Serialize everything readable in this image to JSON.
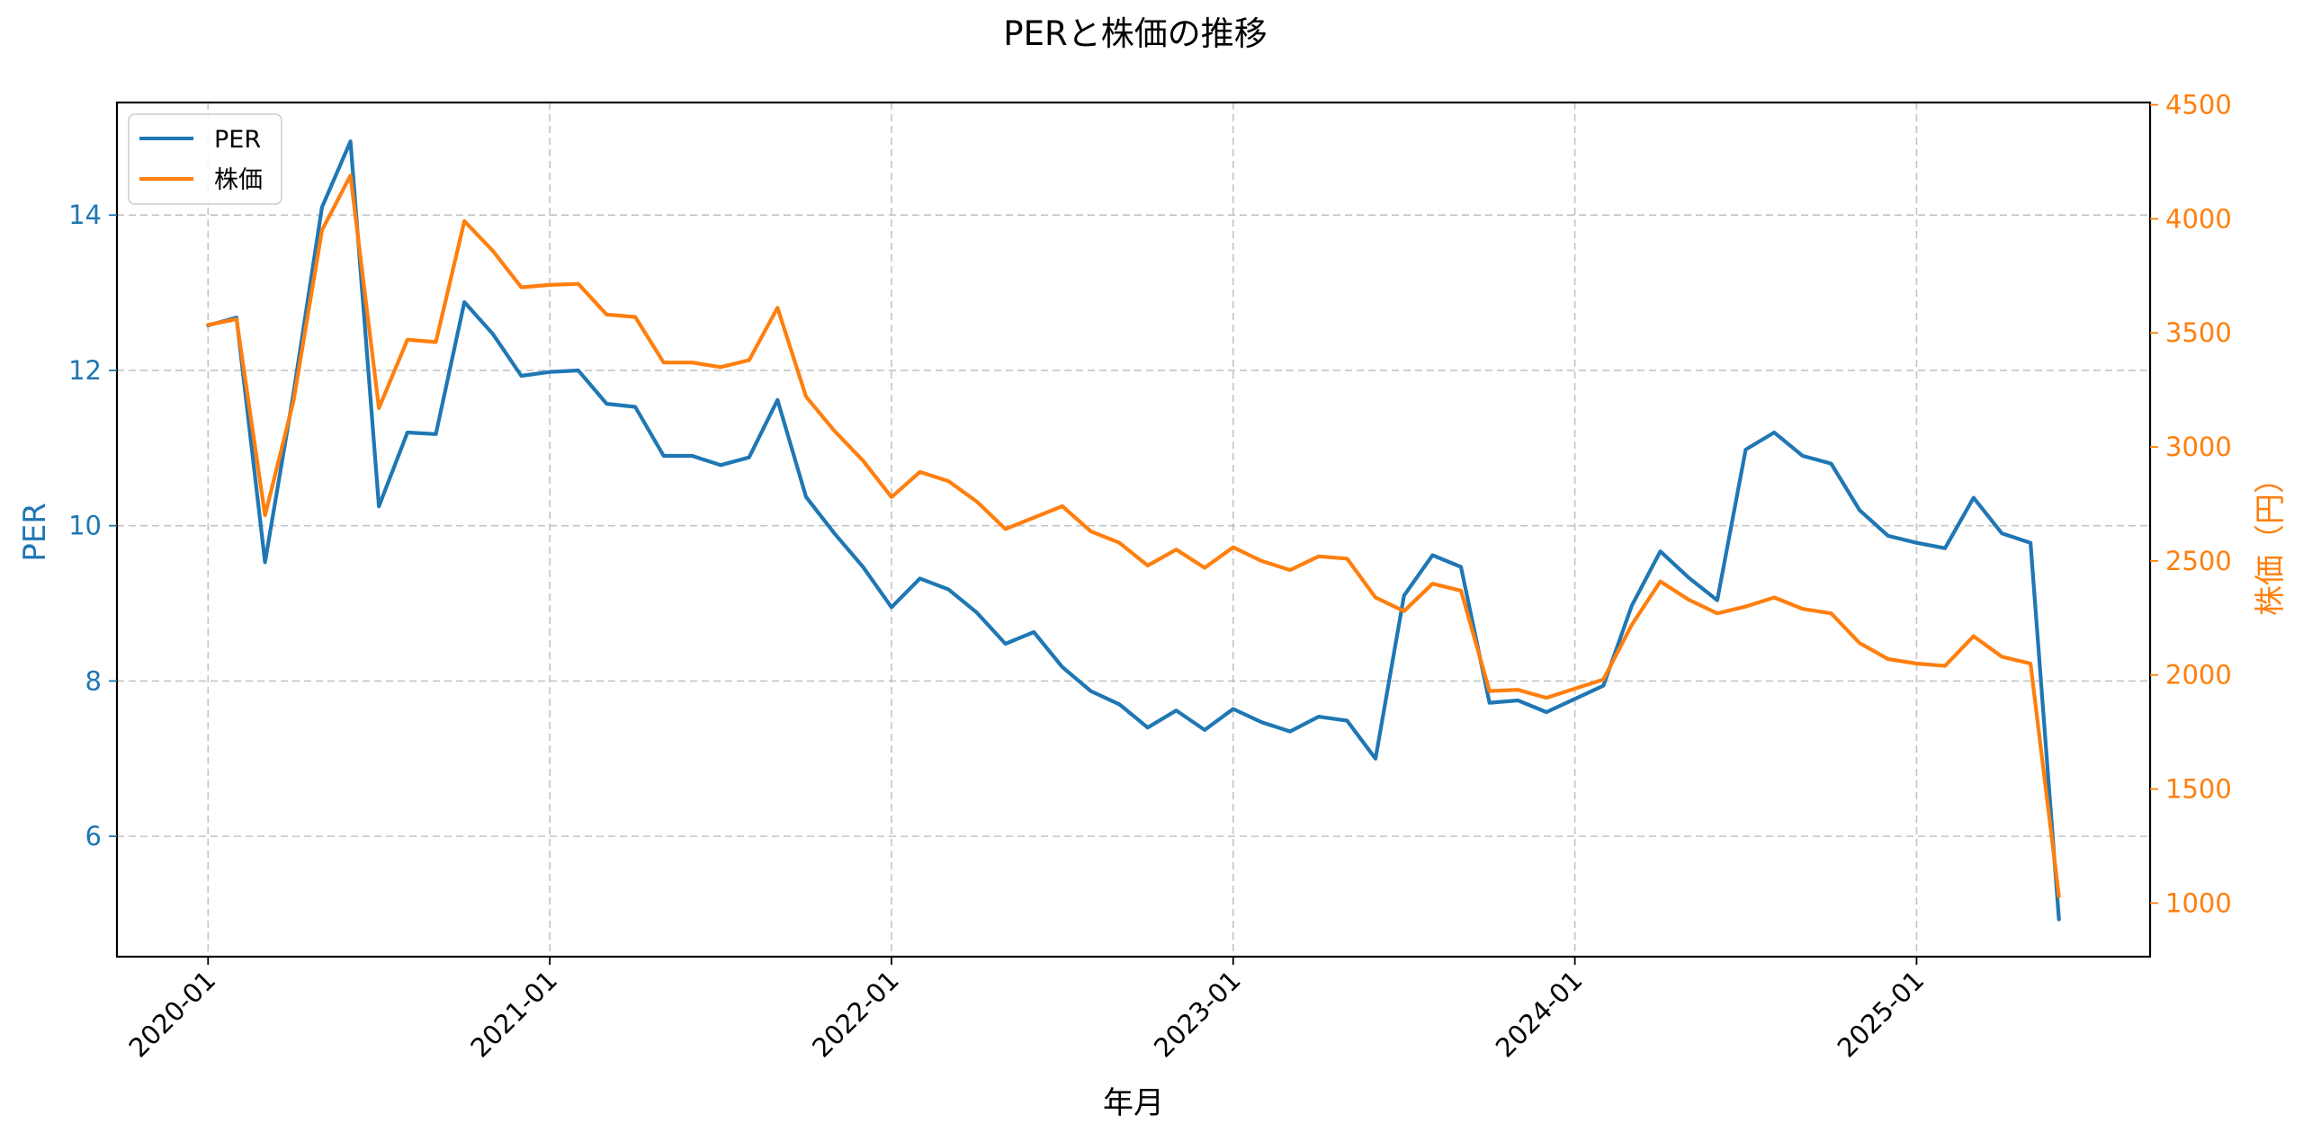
{
  "chart_data": {
    "type": "line",
    "title": "PERと株価の推移",
    "xlabel": "年月",
    "ylabel_left": "PER",
    "ylabel_right": "株価（円）",
    "x_tick_labels": [
      "2020-01",
      "2021-01",
      "2022-01",
      "2023-01",
      "2024-01",
      "2025-01"
    ],
    "x_range_months": [
      -3.2,
      68.2
    ],
    "ylim_left": [
      4.45,
      15.45
    ],
    "ylim_right": [
      765,
      4510
    ],
    "yticks_left": [
      "6",
      "8",
      "10",
      "12",
      "14"
    ],
    "yticks_right": [
      "1000",
      "1500",
      "2000",
      "2500",
      "3000",
      "3500",
      "4000",
      "4500"
    ],
    "grid": true,
    "legend_position": "upper-left",
    "colors": {
      "per": "#1f77b4",
      "price": "#ff7f0e"
    },
    "series": [
      {
        "name": "PER",
        "axis": "left",
        "values": [
          12.58,
          12.68,
          9.53,
          11.7,
          14.1,
          14.95,
          10.25,
          11.2,
          11.18,
          12.88,
          12.47,
          11.93,
          11.98,
          12.0,
          11.57,
          11.53,
          10.9,
          10.9,
          10.78,
          10.88,
          11.62,
          10.37,
          9.9,
          9.47,
          8.95,
          9.32,
          9.18,
          8.88,
          8.48,
          8.63,
          8.18,
          7.87,
          7.7,
          7.4,
          7.62,
          7.37,
          7.64,
          7.47,
          7.35,
          7.54,
          7.49,
          7.0,
          9.1,
          9.62,
          9.47,
          7.72,
          7.75,
          7.6,
          7.77,
          7.94,
          8.97,
          9.67,
          9.33,
          9.04,
          10.98,
          11.2,
          10.9,
          10.8,
          10.2,
          9.87,
          9.78,
          9.71,
          10.36,
          9.9,
          9.78,
          4.93
        ]
      },
      {
        "name": "株価",
        "axis": "right",
        "values": [
          3535,
          3560,
          2700,
          3200,
          3950,
          4190,
          3170,
          3470,
          3460,
          3990,
          3860,
          3700,
          3710,
          3715,
          3580,
          3570,
          3370,
          3370,
          3350,
          3380,
          3610,
          3220,
          3070,
          2940,
          2780,
          2890,
          2850,
          2760,
          2640,
          2690,
          2740,
          2630,
          2580,
          2480,
          2550,
          2470,
          2560,
          2500,
          2460,
          2520,
          2510,
          2340,
          2280,
          2400,
          2370,
          1930,
          1935,
          1900,
          1940,
          1980,
          2220,
          2410,
          2330,
          2270,
          2300,
          2340,
          2290,
          2270,
          2140,
          2070,
          2050,
          2040,
          2170,
          2080,
          2050,
          1030
        ]
      }
    ]
  }
}
